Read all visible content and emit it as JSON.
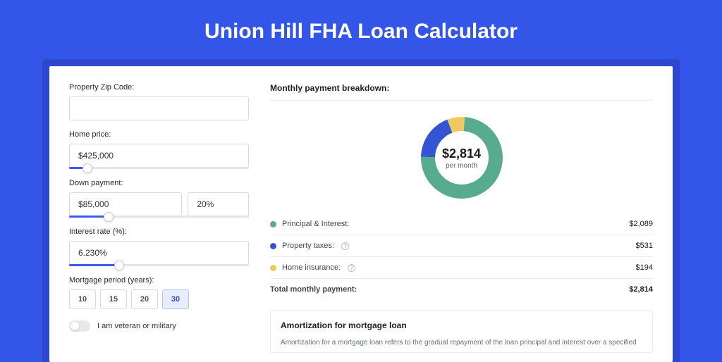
{
  "page": {
    "title": "Union Hill FHA Loan Calculator",
    "background_color": "#3355e8",
    "card_shadow_color": "#2e47cc"
  },
  "form": {
    "zip": {
      "label": "Property Zip Code:",
      "value": ""
    },
    "home_price": {
      "label": "Home price:",
      "value": "$425,000",
      "slider_pct": 10
    },
    "down_payment": {
      "label": "Down payment:",
      "value": "$85,000",
      "pct": "20%",
      "slider_pct": 22
    },
    "interest_rate": {
      "label": "Interest rate (%):",
      "value": "6.230%",
      "slider_pct": 28
    },
    "mortgage_period": {
      "label": "Mortgage period (years):",
      "options": [
        "10",
        "15",
        "20",
        "30"
      ],
      "active_index": 3
    },
    "veteran": {
      "label": "I am veteran or military",
      "checked": false
    }
  },
  "breakdown": {
    "title": "Monthly payment breakdown:",
    "center": {
      "amount": "$2,814",
      "sub": "per month"
    },
    "donut": {
      "type": "donut",
      "segments": [
        {
          "key": "principal_interest",
          "value": 2089,
          "color": "#57ab8e"
        },
        {
          "key": "property_taxes",
          "value": 531,
          "color": "#3554d1"
        },
        {
          "key": "home_insurance",
          "value": 194,
          "color": "#efc95e"
        }
      ],
      "background_color": "#ffffff",
      "outer_radius": 58,
      "inner_radius": 38,
      "gap_deg": 0,
      "start_angle_deg": 4
    },
    "items": [
      {
        "label": "Principal & Interest:",
        "amount": "$2,089",
        "color": "#57ab8e",
        "info": false
      },
      {
        "label": "Property taxes:",
        "amount": "$531",
        "color": "#3554d1",
        "info": true
      },
      {
        "label": "Home insurance:",
        "amount": "$194",
        "color": "#efc95e",
        "info": true
      }
    ],
    "total": {
      "label": "Total monthly payment:",
      "amount": "$2,814"
    }
  },
  "amortization": {
    "title": "Amortization for mortgage loan",
    "text": "Amortization for a mortgage loan refers to the gradual repayment of the loan principal and interest over a specified"
  }
}
